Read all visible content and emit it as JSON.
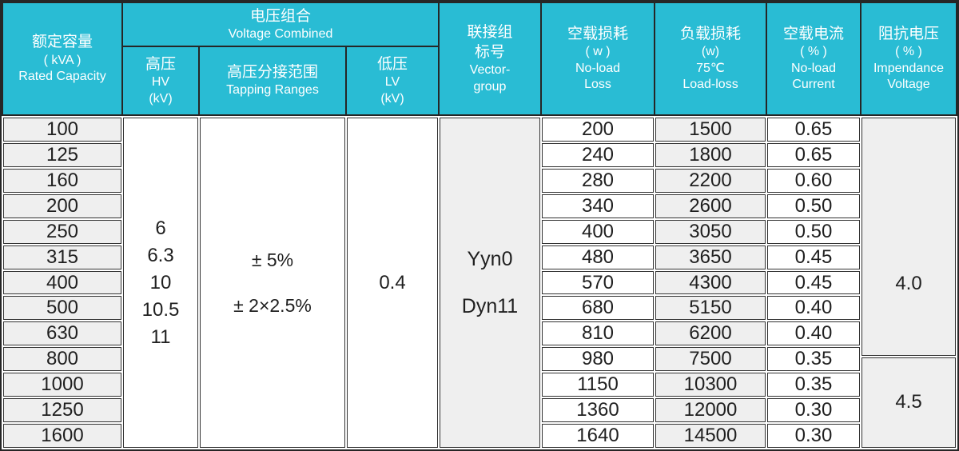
{
  "table": {
    "colors": {
      "header_bg": "#29bcd4",
      "border": "#262626",
      "shaded_cell": "#efefef",
      "white_cell": "#ffffff",
      "header_text": "#ffffff",
      "body_text": "#1f1f1f"
    },
    "header": {
      "rated_capacity": {
        "lines": [
          "额定容量",
          "( kVA )",
          "Rated Capacity"
        ]
      },
      "voltage_combined": {
        "lines": [
          "电压组合",
          "Voltage Combined"
        ]
      },
      "hv": {
        "lines": [
          "高压",
          "HV",
          "(kV)"
        ]
      },
      "tapping": {
        "lines": [
          "高压分接范围",
          "Tapping Ranges"
        ]
      },
      "lv": {
        "lines": [
          "低压",
          "LV",
          "(kV)"
        ]
      },
      "vector_group": {
        "lines": [
          "联接组",
          "标号",
          "Vector-",
          "group"
        ]
      },
      "no_load_loss": {
        "lines": [
          "空载损耗",
          "( w )",
          "No-load",
          "Loss"
        ]
      },
      "load_loss": {
        "lines": [
          "负载损耗",
          "(w)",
          "75℃",
          "Load-loss"
        ]
      },
      "no_load_current": {
        "lines": [
          "空载电流",
          "( % )",
          "No-load",
          "Current"
        ]
      },
      "impedance_voltage": {
        "lines": [
          "阻抗电压",
          "( % )",
          "Impendance",
          "Voltage"
        ]
      }
    },
    "body": {
      "capacities": [
        "100",
        "125",
        "160",
        "200",
        "250",
        "315",
        "400",
        "500",
        "630",
        "800",
        "1000",
        "1250",
        "1600"
      ],
      "hv_values": [
        "6",
        "6.3",
        "10",
        "10.5",
        "11"
      ],
      "tapping_ranges": [
        "± 5%",
        "± 2×2.5%"
      ],
      "lv_value": [
        "0.4"
      ],
      "vector_groups": [
        "Yyn0",
        "Dyn11"
      ],
      "no_load_loss": [
        "200",
        "240",
        "280",
        "340",
        "400",
        "480",
        "570",
        "680",
        "810",
        "980",
        "1150",
        "1360",
        "1640"
      ],
      "load_loss": [
        "1500",
        "1800",
        "2200",
        "2600",
        "3050",
        "3650",
        "4300",
        "5150",
        "6200",
        "7500",
        "10300",
        "12000",
        "14500"
      ],
      "no_load_current": [
        "0.65",
        "0.65",
        "0.60",
        "0.50",
        "0.50",
        "0.45",
        "0.45",
        "0.40",
        "0.40",
        "0.35",
        "0.35",
        "0.30",
        "0.30"
      ],
      "impedance": [
        {
          "value": "4.0",
          "row_span": 8
        },
        {
          "value": "4.5",
          "row_span": 5
        }
      ]
    }
  }
}
